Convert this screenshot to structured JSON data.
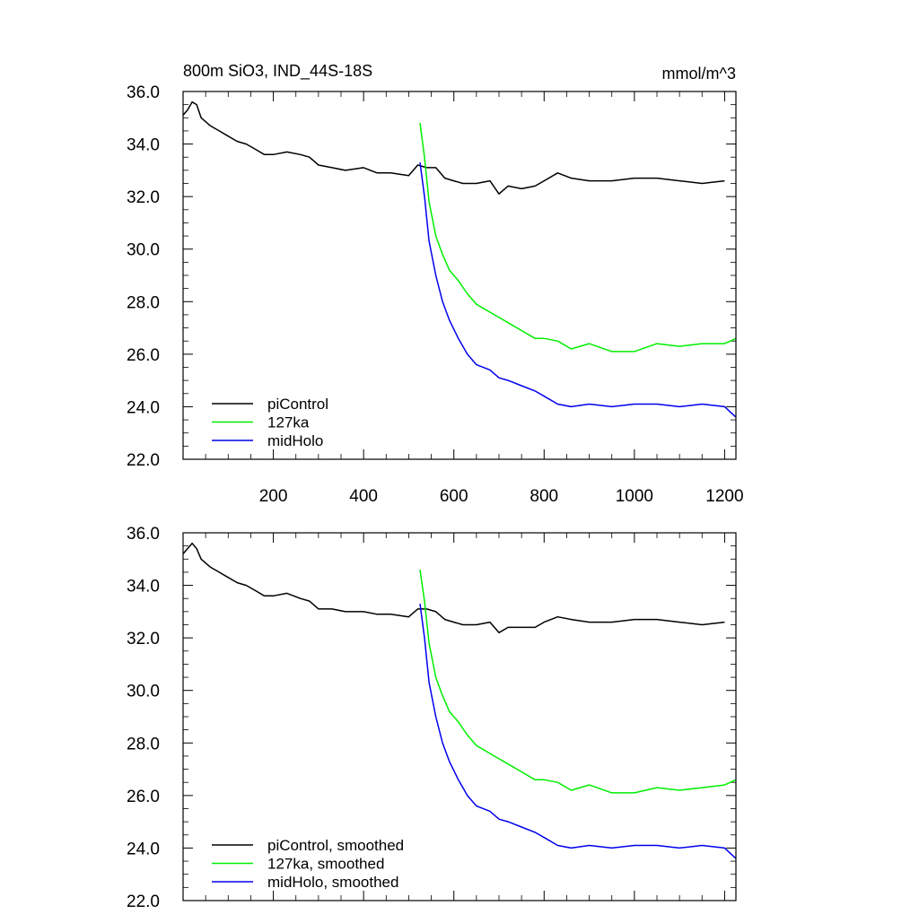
{
  "chart_data": [
    {
      "type": "line",
      "title": "800m SiO3, IND_44S-18S",
      "units": "mmol/m^3",
      "xlim": [
        0,
        1225
      ],
      "ylim": [
        22.0,
        36.0
      ],
      "xticks": [
        200,
        400,
        600,
        800,
        1000,
        1200
      ],
      "xtick_labels": [
        "200",
        "400",
        "600",
        "800",
        "1000",
        "1200"
      ],
      "yticks": [
        22.0,
        24.0,
        26.0,
        28.0,
        30.0,
        32.0,
        34.0,
        36.0
      ],
      "ytick_labels": [
        "22.0",
        "24.0",
        "26.0",
        "28.0",
        "30.0",
        "32.0",
        "34.0",
        "36.0"
      ],
      "legend_position": "bottom-left",
      "series": [
        {
          "name": "piControl",
          "color": "#000000",
          "x": [
            0,
            10,
            20,
            30,
            40,
            60,
            80,
            100,
            120,
            140,
            160,
            180,
            200,
            230,
            260,
            280,
            300,
            330,
            360,
            400,
            430,
            460,
            500,
            520,
            540,
            560,
            580,
            600,
            620,
            650,
            680,
            700,
            720,
            750,
            780,
            800,
            830,
            860,
            900,
            950,
            1000,
            1050,
            1100,
            1150,
            1200
          ],
          "y": [
            35.1,
            35.3,
            35.6,
            35.5,
            35.0,
            34.7,
            34.5,
            34.3,
            34.1,
            34.0,
            33.8,
            33.6,
            33.6,
            33.7,
            33.6,
            33.5,
            33.2,
            33.1,
            33.0,
            33.1,
            32.9,
            32.9,
            32.8,
            33.2,
            33.1,
            33.1,
            32.7,
            32.6,
            32.5,
            32.5,
            32.6,
            32.1,
            32.4,
            32.3,
            32.4,
            32.6,
            32.9,
            32.7,
            32.6,
            32.6,
            32.7,
            32.7,
            32.6,
            32.5,
            32.6
          ]
        },
        {
          "name": "127ka",
          "color": "#00ee00",
          "x": [
            525,
            535,
            545,
            560,
            575,
            590,
            610,
            630,
            650,
            680,
            700,
            720,
            750,
            780,
            800,
            830,
            860,
            900,
            950,
            1000,
            1050,
            1100,
            1150,
            1200,
            1225
          ],
          "y": [
            34.8,
            33.5,
            31.8,
            30.5,
            29.8,
            29.2,
            28.8,
            28.3,
            27.9,
            27.6,
            27.4,
            27.2,
            26.9,
            26.6,
            26.6,
            26.5,
            26.2,
            26.4,
            26.1,
            26.1,
            26.4,
            26.3,
            26.4,
            26.4,
            26.6
          ]
        },
        {
          "name": "midHolo",
          "color": "#0000ee",
          "x": [
            525,
            535,
            545,
            560,
            575,
            590,
            610,
            630,
            650,
            680,
            700,
            720,
            750,
            780,
            800,
            830,
            860,
            900,
            950,
            1000,
            1050,
            1100,
            1150,
            1200,
            1225
          ],
          "y": [
            33.3,
            32.0,
            30.3,
            29.0,
            28.0,
            27.3,
            26.6,
            26.0,
            25.6,
            25.4,
            25.1,
            25.0,
            24.8,
            24.6,
            24.4,
            24.1,
            24.0,
            24.1,
            24.0,
            24.1,
            24.1,
            24.0,
            24.1,
            24.0,
            23.6
          ]
        }
      ]
    },
    {
      "type": "line",
      "xlim": [
        0,
        1225
      ],
      "ylim": [
        22.0,
        36.0
      ],
      "xticks": [
        200,
        400,
        600,
        800,
        1000,
        1200
      ],
      "yticks": [
        22.0,
        24.0,
        26.0,
        28.0,
        30.0,
        32.0,
        34.0,
        36.0
      ],
      "ytick_labels": [
        "22.0",
        "24.0",
        "26.0",
        "28.0",
        "30.0",
        "32.0",
        "34.0",
        "36.0"
      ],
      "legend_position": "bottom-left",
      "series": [
        {
          "name": "piControl, smoothed",
          "color": "#000000",
          "x": [
            0,
            10,
            20,
            30,
            40,
            60,
            80,
            100,
            120,
            140,
            160,
            180,
            200,
            230,
            260,
            280,
            300,
            330,
            360,
            400,
            430,
            460,
            500,
            520,
            540,
            560,
            580,
            600,
            620,
            650,
            680,
            700,
            720,
            750,
            780,
            800,
            830,
            860,
            900,
            950,
            1000,
            1050,
            1100,
            1150,
            1200
          ],
          "y": [
            35.2,
            35.4,
            35.6,
            35.4,
            35.0,
            34.7,
            34.5,
            34.3,
            34.1,
            34.0,
            33.8,
            33.6,
            33.6,
            33.7,
            33.5,
            33.4,
            33.1,
            33.1,
            33.0,
            33.0,
            32.9,
            32.9,
            32.8,
            33.1,
            33.1,
            33.0,
            32.7,
            32.6,
            32.5,
            32.5,
            32.6,
            32.2,
            32.4,
            32.4,
            32.4,
            32.6,
            32.8,
            32.7,
            32.6,
            32.6,
            32.7,
            32.7,
            32.6,
            32.5,
            32.6
          ]
        },
        {
          "name": "127ka, smoothed",
          "color": "#00ee00",
          "x": [
            525,
            535,
            545,
            560,
            575,
            590,
            610,
            630,
            650,
            680,
            700,
            720,
            750,
            780,
            800,
            830,
            860,
            900,
            950,
            1000,
            1050,
            1100,
            1150,
            1200,
            1225
          ],
          "y": [
            34.6,
            33.4,
            31.8,
            30.5,
            29.8,
            29.2,
            28.8,
            28.3,
            27.9,
            27.6,
            27.4,
            27.2,
            26.9,
            26.6,
            26.6,
            26.5,
            26.2,
            26.4,
            26.1,
            26.1,
            26.3,
            26.2,
            26.3,
            26.4,
            26.6
          ]
        },
        {
          "name": "midHolo, smoothed",
          "color": "#0000ee",
          "x": [
            525,
            535,
            545,
            560,
            575,
            590,
            610,
            630,
            650,
            680,
            700,
            720,
            750,
            780,
            800,
            830,
            860,
            900,
            950,
            1000,
            1050,
            1100,
            1150,
            1200,
            1225
          ],
          "y": [
            33.3,
            32.0,
            30.3,
            29.0,
            28.0,
            27.3,
            26.6,
            26.0,
            25.6,
            25.4,
            25.1,
            25.0,
            24.8,
            24.6,
            24.4,
            24.1,
            24.0,
            24.1,
            24.0,
            24.1,
            24.1,
            24.0,
            24.1,
            24.0,
            23.6
          ]
        }
      ]
    }
  ]
}
